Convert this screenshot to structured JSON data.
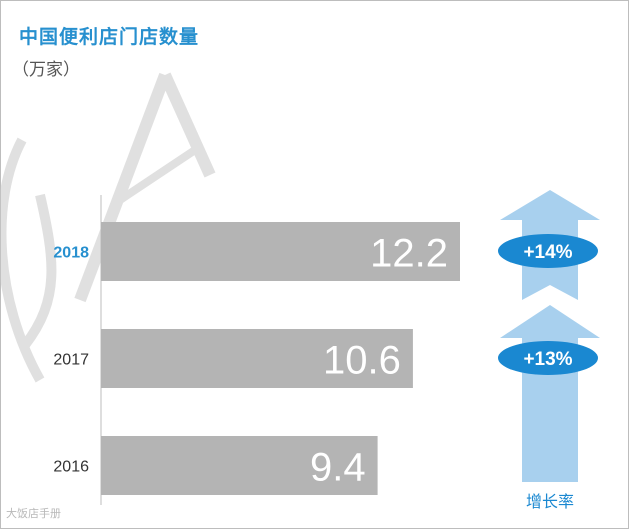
{
  "title": "中国便利店门店数量",
  "unit_label": "（万家）",
  "chart_data": {
    "type": "bar",
    "orientation": "horizontal",
    "categories": [
      "2018",
      "2017",
      "2016"
    ],
    "values": [
      12.2,
      10.6,
      9.4
    ],
    "highlight_category": "2018",
    "xlim": [
      0,
      14.2
    ],
    "grid": false,
    "growth_label": "增长率",
    "growth": [
      "+14%",
      "+13%"
    ]
  },
  "colors": {
    "title": "#2790cf",
    "highlight_category": "#2790cf",
    "bar": "#b4b4b4",
    "arrow": "#a8d0ee",
    "growth_badge": "#1a88d1"
  },
  "watermark": "大饭店手册"
}
